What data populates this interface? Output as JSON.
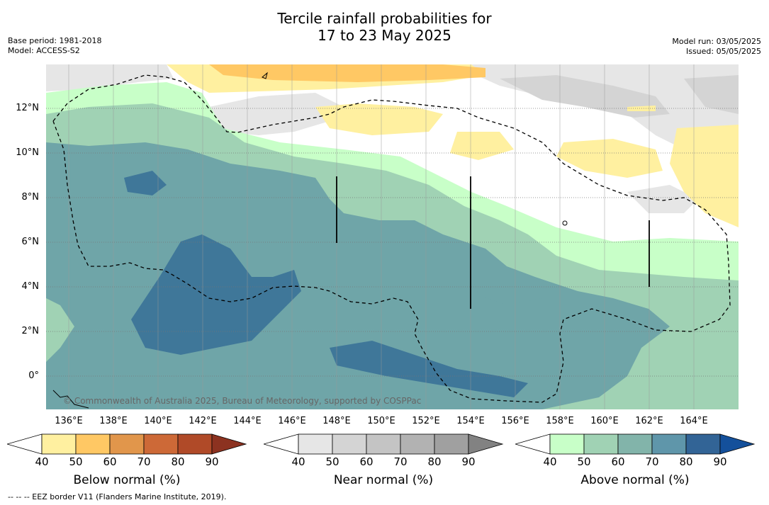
{
  "title_line1": "Tercile rainfall probabilities for",
  "title_line2": "17 to 23 May 2025",
  "meta_left": [
    "Base period: 1981-2018",
    "Model: ACCESS-S2"
  ],
  "meta_right": [
    "Model run: 03/05/2025",
    "Issued: 05/05/2025"
  ],
  "lat_labels": [
    "12°N",
    "10°N",
    "8°N",
    "6°N",
    "4°N",
    "2°N",
    "0°"
  ],
  "lon_labels": [
    "136°E",
    "138°E",
    "140°E",
    "142°E",
    "144°E",
    "146°E",
    "148°E",
    "150°E",
    "152°E",
    "154°E",
    "156°E",
    "158°E",
    "160°E",
    "162°E",
    "164°E"
  ],
  "copyright": "© Commonwealth of Australia 2025, Bureau of Meteorology, supported by COSPPac",
  "colorbars": [
    {
      "title": "Below normal (%)",
      "ticks": [
        "40",
        "50",
        "60",
        "70",
        "80",
        "90"
      ],
      "colors": [
        "#ffffff",
        "#fff0a0",
        "#ffc864",
        "#e1964b",
        "#cd6937",
        "#b04a28",
        "#8c3220"
      ]
    },
    {
      "title": "Near normal (%)",
      "ticks": [
        "40",
        "50",
        "60",
        "70",
        "80",
        "90"
      ],
      "colors": [
        "#ffffff",
        "#e6e6e6",
        "#d4d4d4",
        "#c4c4c4",
        "#b2b2b2",
        "#a0a0a0",
        "#828282"
      ]
    },
    {
      "title": "Above normal (%)",
      "ticks": [
        "40",
        "50",
        "60",
        "70",
        "80",
        "90"
      ],
      "colors": [
        "#ffffff",
        "#c8ffc8",
        "#a0d2b4",
        "#82b4aa",
        "#5f96aa",
        "#326496",
        "#14509b"
      ]
    }
  ],
  "footnote": "--  --  -- EEZ border V11 (Flanders Marine Institute, 2019)."
}
